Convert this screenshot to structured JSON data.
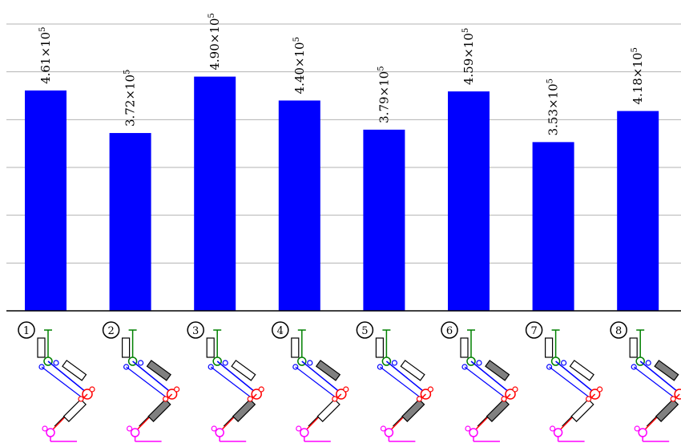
{
  "chart_data": {
    "type": "bar",
    "categories": [
      "1",
      "2",
      "3",
      "4",
      "5",
      "6",
      "7",
      "8"
    ],
    "values": [
      461000,
      372000,
      490000,
      440000,
      379000,
      459000,
      353000,
      418000
    ],
    "labels": [
      {
        "mant": "4.61",
        "exp": "5"
      },
      {
        "mant": "3.72",
        "exp": "5"
      },
      {
        "mant": "4.90",
        "exp": "5"
      },
      {
        "mant": "4.40",
        "exp": "5"
      },
      {
        "mant": "3.79",
        "exp": "5"
      },
      {
        "mant": "4.59",
        "exp": "5"
      },
      {
        "mant": "3.53",
        "exp": "5"
      },
      {
        "mant": "4.18",
        "exp": "5"
      }
    ],
    "title": "",
    "xlabel": "",
    "ylabel": "",
    "ylim": [
      0,
      600000
    ],
    "gridlines": [
      100000,
      200000,
      300000,
      400000,
      500000,
      600000
    ],
    "grid": true,
    "bar_color": "#0000ff",
    "diagram_colors": {
      "green": "#008000",
      "blue": "#0000ff",
      "red": "#ff0000",
      "magenta": "#ff00ff"
    }
  }
}
